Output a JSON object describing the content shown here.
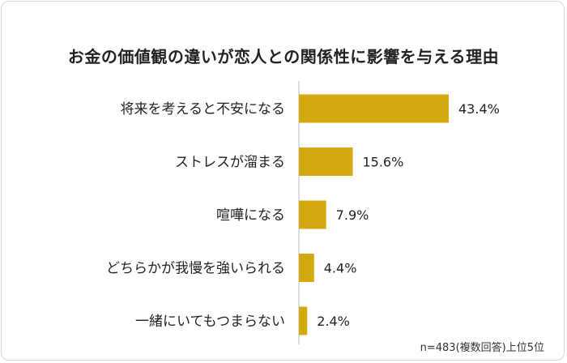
{
  "chart_data": {
    "type": "bar",
    "orientation": "horizontal",
    "title": "お金の価値観の違いが恋人との関係性に影響を与える理由",
    "categories": [
      "将来を考えると不安になる",
      "ストレスが溜まる",
      "喧嘩になる",
      "どちらかが我慢を強いられる",
      "一緒にいてもつまらない"
    ],
    "values": [
      43.4,
      15.6,
      7.9,
      4.4,
      2.4
    ],
    "value_labels": [
      "43.4%",
      "15.6%",
      "7.9%",
      "4.4%",
      "2.4%"
    ],
    "bar_color": "#d4a80f",
    "xlim": [
      0,
      50
    ],
    "grid": false,
    "footnote": "n=483(複数回答)上位5位"
  }
}
